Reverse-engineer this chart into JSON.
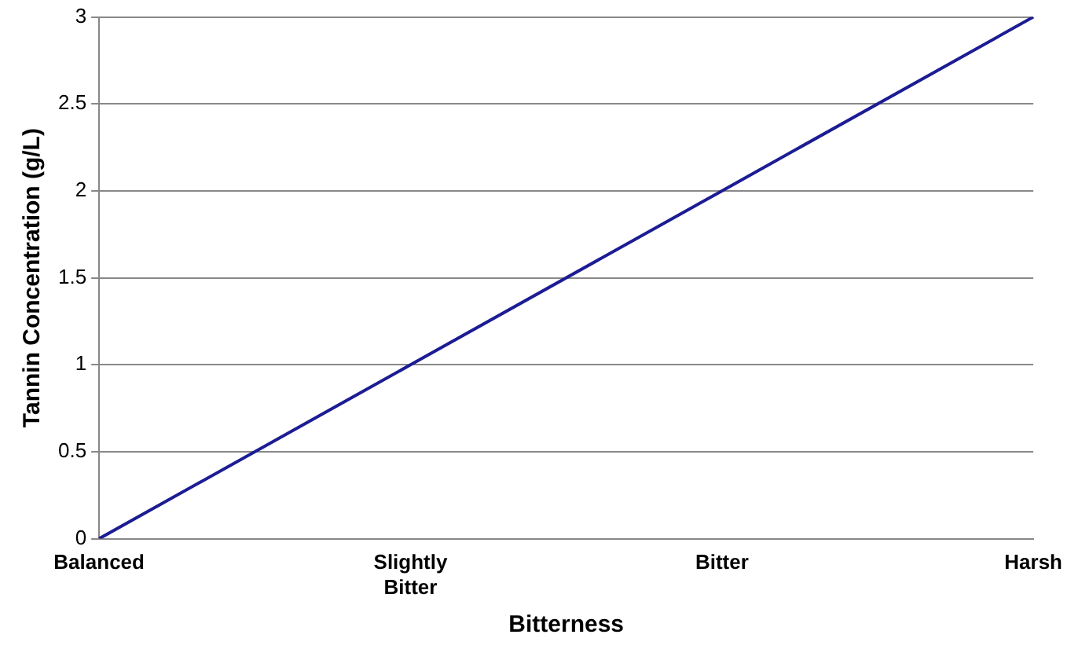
{
  "chart_data": {
    "type": "line",
    "xlabel": "Bitterness",
    "ylabel": "Tannin Concentration (g/L)",
    "categories": [
      "Balanced",
      "Slightly Bitter",
      "Bitter",
      "Harsh"
    ],
    "series": [
      {
        "color": "#1c1c94",
        "values": [
          0,
          1,
          2,
          3
        ]
      }
    ],
    "ylim": [
      0,
      3
    ],
    "yticks": [
      0,
      0.5,
      1,
      1.5,
      2,
      2.5,
      3
    ],
    "grid": "y",
    "legend": false,
    "marker": "none"
  }
}
